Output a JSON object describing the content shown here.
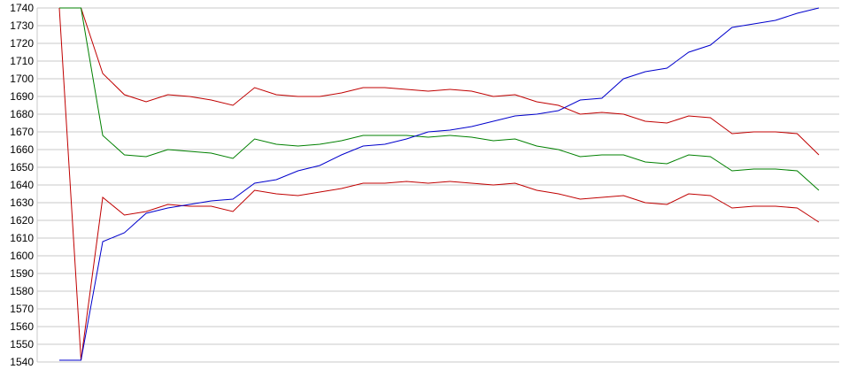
{
  "chart_data": {
    "type": "line",
    "categories": [
      null,
      null,
      null,
      null,
      null,
      null,
      null,
      null,
      null,
      null,
      null,
      null,
      null,
      null,
      null,
      null,
      null,
      null,
      null,
      null,
      null,
      null,
      null,
      null,
      null,
      null,
      null,
      null,
      null,
      null,
      null,
      null,
      null,
      null,
      null,
      null
    ],
    "series": [
      {
        "color": "#c00000",
        "values": [
          1740,
          1740,
          1703,
          1691,
          1687,
          1691,
          1690,
          1688,
          1685,
          1695,
          1691,
          1690,
          1690,
          1692,
          1695,
          1695,
          1694,
          1693,
          1694,
          1693,
          1690,
          1691,
          1687,
          1685,
          1680,
          1681,
          1680,
          1676,
          1675,
          1679,
          1678,
          1669,
          1670,
          1670,
          1669,
          1657
        ]
      },
      {
        "color": "#008000",
        "values": [
          1740,
          1740,
          1668,
          1657,
          1656,
          1660,
          1659,
          1658,
          1655,
          1666,
          1663,
          1662,
          1663,
          1665,
          1668,
          1668,
          1668,
          1667,
          1668,
          1667,
          1665,
          1666,
          1662,
          1660,
          1656,
          1657,
          1657,
          1653,
          1652,
          1657,
          1656,
          1648,
          1649,
          1649,
          1648,
          1637
        ]
      },
      {
        "color": "#c00000",
        "values": [
          1740,
          1541,
          1633,
          1623,
          1625,
          1629,
          1628,
          1628,
          1625,
          1637,
          1635,
          1634,
          1636,
          1638,
          1641,
          1641,
          1642,
          1641,
          1642,
          1641,
          1640,
          1641,
          1637,
          1635,
          1632,
          1633,
          1634,
          1630,
          1629,
          1635,
          1634,
          1627,
          1628,
          1628,
          1627,
          1619
        ]
      },
      {
        "color": "#0000cc",
        "values": [
          1541,
          1541,
          1608,
          1613,
          1624,
          1627,
          1629,
          1631,
          1632,
          1641,
          1643,
          1648,
          1651,
          1657,
          1662,
          1663,
          1666,
          1670,
          1671,
          1673,
          1676,
          1679,
          1680,
          1682,
          1688,
          1689,
          1700,
          1704,
          1706,
          1715,
          1719,
          1729,
          1731,
          1733,
          1737,
          1740
        ]
      }
    ],
    "ylim": [
      1540,
      1740
    ],
    "yticks": [
      1540,
      1550,
      1560,
      1570,
      1580,
      1590,
      1600,
      1610,
      1620,
      1630,
      1640,
      1650,
      1660,
      1670,
      1680,
      1690,
      1700,
      1710,
      1720,
      1730,
      1740
    ],
    "grid": true
  }
}
